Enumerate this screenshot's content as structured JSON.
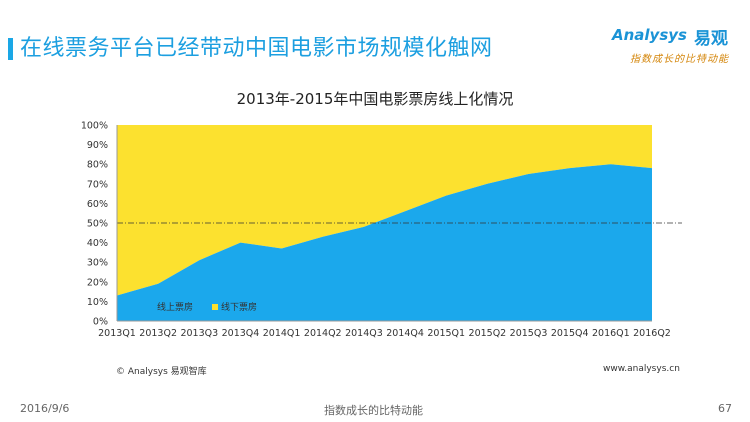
{
  "slide": {
    "title": "在线票务平台已经带动中国电影市场规模化触网"
  },
  "brand": {
    "logo_text": "Analysys",
    "logo_cn": "易观",
    "tagline": "指数成长的比特动能"
  },
  "chart_data": {
    "type": "area",
    "title": "2013年-2015年中国电影票房线上化情况",
    "categories": [
      "2013Q1",
      "2013Q2",
      "2013Q3",
      "2013Q4",
      "2014Q1",
      "2014Q2",
      "2014Q3",
      "2014Q4",
      "2015Q1",
      "2015Q2",
      "2015Q3",
      "2015Q4",
      "2016Q1",
      "2016Q2"
    ],
    "stacked": true,
    "percent": true,
    "series": [
      {
        "name": "线上票房",
        "color": "#1ba8ec",
        "values": [
          13,
          19,
          31,
          40,
          37,
          43,
          48,
          56,
          64,
          70,
          75,
          78,
          80,
          78
        ]
      },
      {
        "name": "线下票房",
        "color": "#fce12f",
        "values": [
          87,
          81,
          69,
          60,
          63,
          57,
          52,
          44,
          36,
          30,
          25,
          22,
          20,
          22
        ]
      }
    ],
    "y_ticks": [
      "0%",
      "10%",
      "20%",
      "30%",
      "40%",
      "50%",
      "60%",
      "70%",
      "80%",
      "90%",
      "100%"
    ],
    "ylim": [
      0,
      100
    ],
    "reference_line": 50,
    "legend_position": "bottom-left",
    "grid": false
  },
  "source": {
    "left": "© Analysys 易观智库",
    "right": "www.analysys.cn"
  },
  "footer": {
    "date": "2016/9/6",
    "center": "指数成长的比特动能",
    "page": "67"
  }
}
